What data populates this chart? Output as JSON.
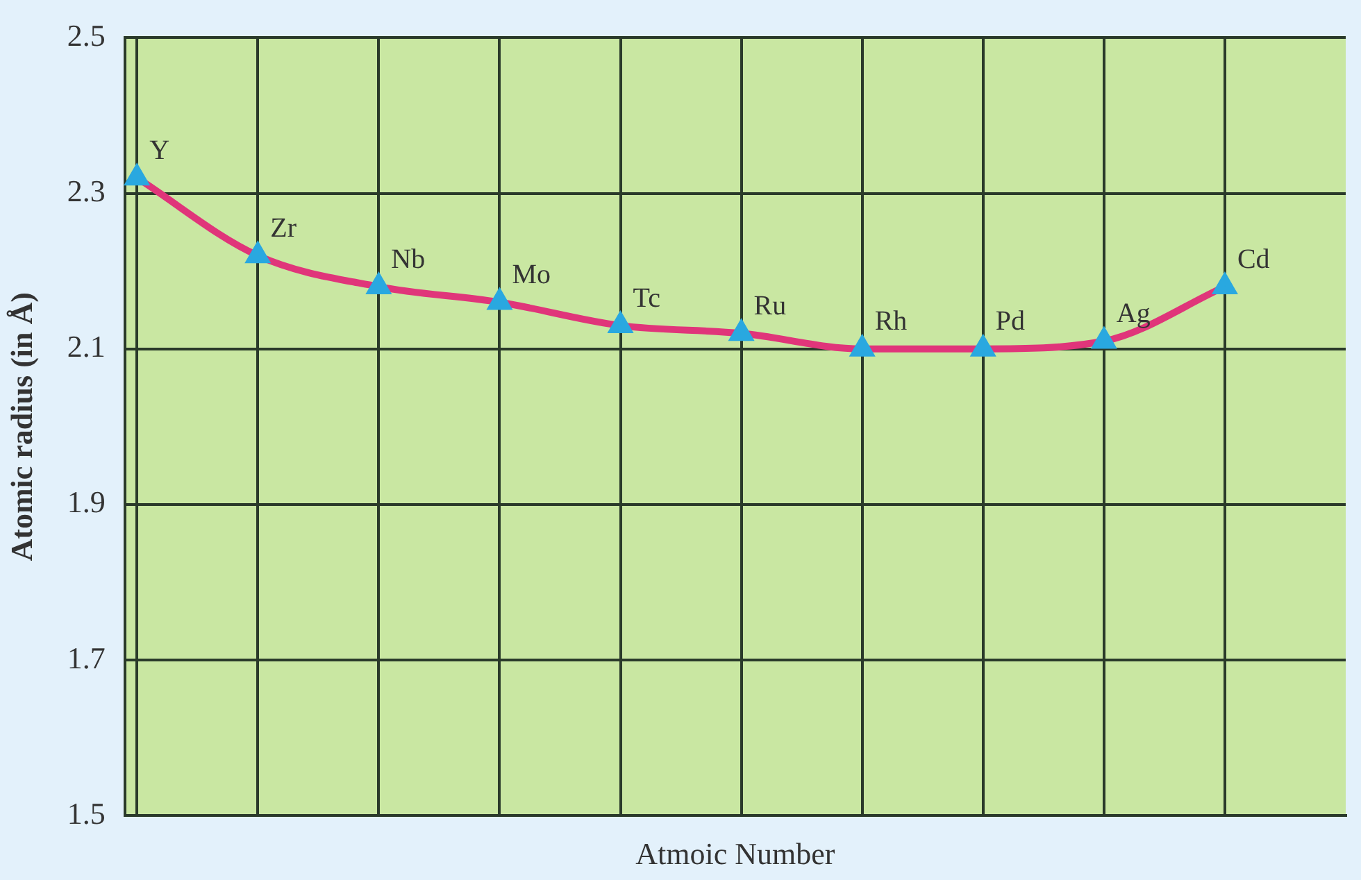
{
  "chart_data": {
    "type": "line",
    "xlabel": "Atmoic Number",
    "ylabel": "Atomic radius (in Å)",
    "categories": [
      "Y",
      "Zr",
      "Nb",
      "Mo",
      "Tc",
      "Ru",
      "Rh",
      "Pd",
      "Ag",
      "Cd"
    ],
    "series": [
      {
        "color": "#e0357a",
        "values": [
          2.32,
          2.22,
          2.18,
          2.16,
          2.13,
          2.12,
          2.1,
          2.1,
          2.11,
          2.18
        ]
      }
    ],
    "ylim": [
      1.5,
      2.5
    ],
    "yticks": [
      1.5,
      1.7,
      1.9,
      2.1,
      2.3,
      2.5
    ],
    "grid": true,
    "legend": false,
    "marker": "triangle",
    "line_style": "solid",
    "tick_labels": "y"
  }
}
